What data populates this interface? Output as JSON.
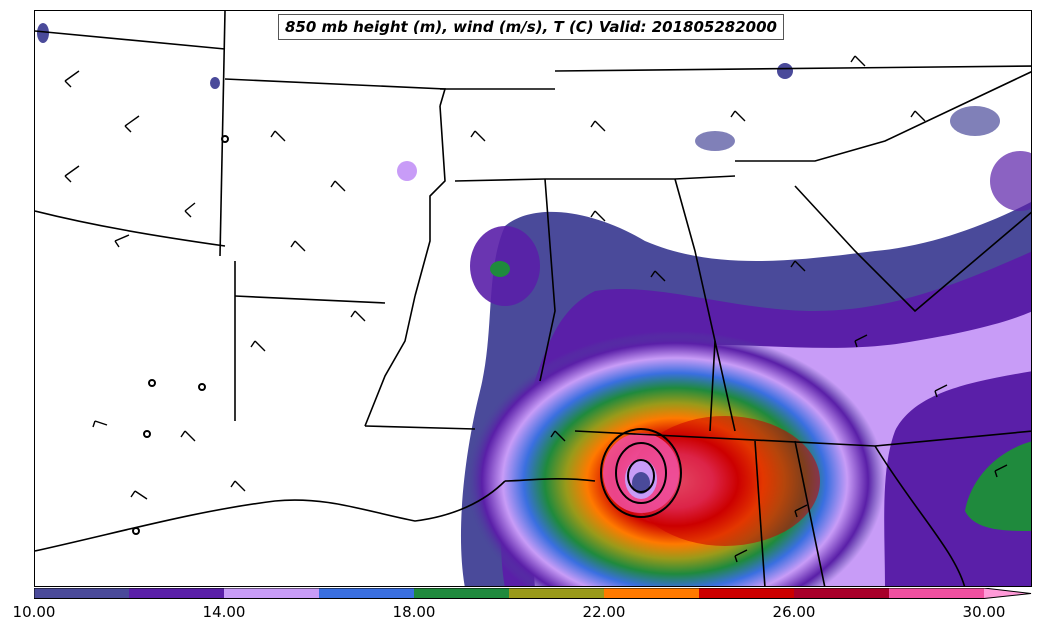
{
  "map": {
    "title": "850 mb height (m), wind (m/s), T (C) Valid: 201805282000",
    "field": "temperature",
    "overlay": [
      "height contours",
      "wind barbs"
    ],
    "region": "Southeastern United States",
    "feature": "tropical cyclone warm core over Florida panhandle / southern Alabama"
  },
  "colorbar": {
    "min": 10.0,
    "max": 30.0,
    "step": 2.0,
    "extend": "max",
    "colors": [
      "#4a4a9a",
      "#5a1fa8",
      "#c89cf7",
      "#3a6fe0",
      "#1f8a3d",
      "#9a9a1a",
      "#ff7a00",
      "#cc0000",
      "#a8002a",
      "#f050a0"
    ],
    "extend_color": "#ff9ad8",
    "tick_labels": [
      "10.00",
      "14.00",
      "18.00",
      "22.00",
      "26.00",
      "30.00"
    ],
    "tick_values": [
      10,
      14,
      18,
      22,
      26,
      30
    ]
  }
}
